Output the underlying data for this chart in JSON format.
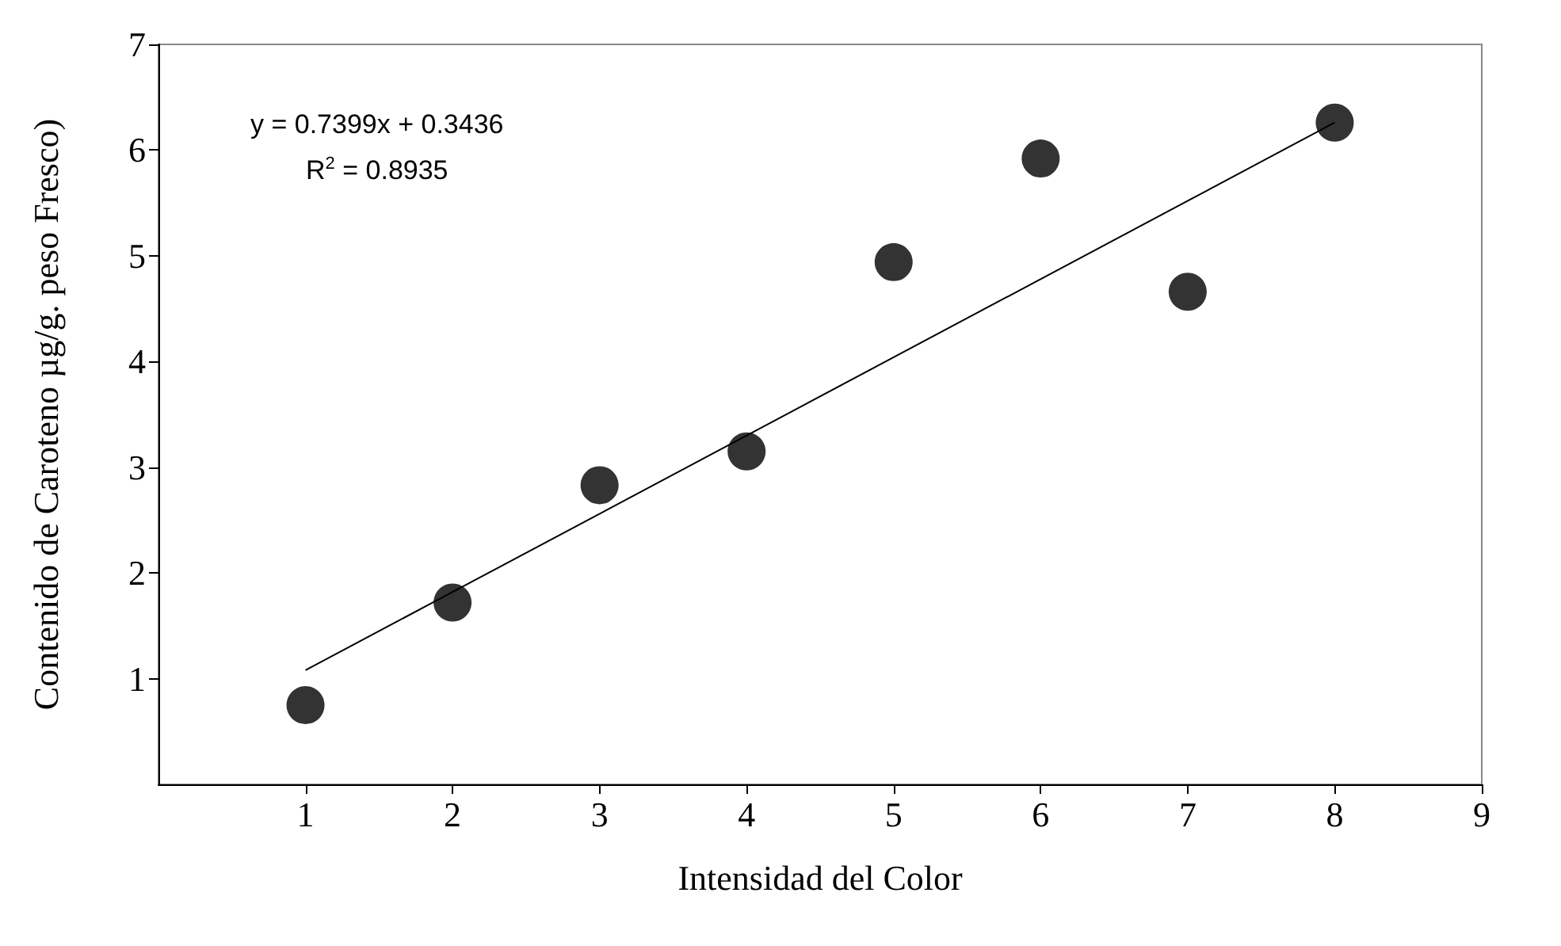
{
  "chart_data": {
    "type": "scatter",
    "xlabel": "Intensidad del Color",
    "ylabel": "Contenido de Caroteno µg/g. peso Fresco)",
    "x": [
      1,
      2,
      3,
      4,
      5,
      6,
      7,
      8
    ],
    "series": [
      {
        "color": "#000000",
        "marker": "circle",
        "values": [
          0.75,
          1.72,
          2.83,
          3.15,
          4.94,
          5.92,
          4.66,
          6.26
        ]
      },
      {
        "type": "line",
        "color": "#000000",
        "marker": "none",
        "line_style": "solid",
        "x": [
          1,
          8
        ],
        "values": [
          1.08,
          6.26
        ]
      }
    ],
    "annotations": [
      "y = 0.7399x + 0.3436",
      "R$^{2}$ = 0.8935"
    ],
    "xlim": [
      0,
      9
    ],
    "ylim": [
      0,
      7
    ],
    "xticks": [
      1,
      2,
      3,
      4,
      5,
      6,
      7,
      8,
      9
    ],
    "yticks": [
      1,
      2,
      3,
      4,
      5,
      6,
      7
    ],
    "grid": false
  }
}
